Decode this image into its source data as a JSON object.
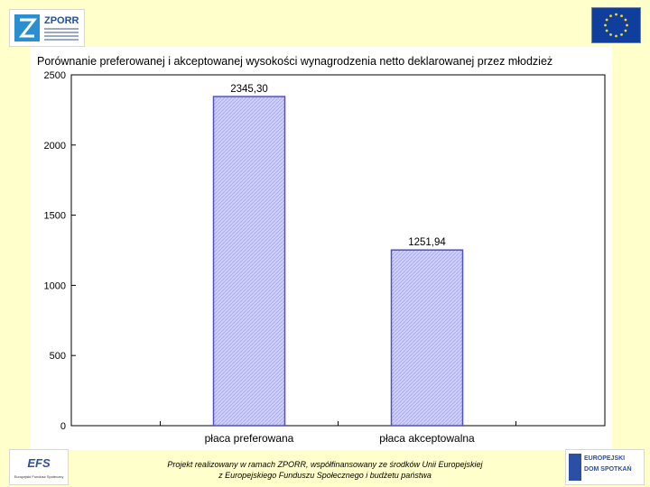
{
  "chart_data": {
    "type": "bar",
    "title": "Porównanie preferowanej i akceptowanej wysokości wynagrodzenia netto deklarowanej przez młodzież",
    "categories": [
      "płaca preferowana",
      "płaca akceptowalna"
    ],
    "values": [
      2345.3,
      1251.94
    ],
    "value_labels": [
      "2345,30",
      "1251,94"
    ],
    "ylim": [
      0,
      2500
    ],
    "yticks": [
      0,
      500,
      1000,
      1500,
      2000,
      2500
    ],
    "grid": false,
    "colors": {
      "bar_fill": "#c9c9f4",
      "bar_border": "#5050c8",
      "title": "#000000"
    }
  },
  "header": {
    "logo_left_text": "ZPORR",
    "logo_left_icon": "zporr-logo-icon",
    "logo_right_icon": "eu-flag-icon"
  },
  "footer": {
    "line1": "Projekt realizowany w ramach ZPORR, współfinansowany ze środków Unii Europejskiej",
    "line2": "z Europejskiego Funduszu Społecznego i budżetu państwa",
    "logo_left_text": "EFS",
    "logo_left_subtext": "Europejski Fundusz Społeczny",
    "logo_right_line1": "EUROPEJSKI",
    "logo_right_line2": "DOM SPOTKAŃ"
  }
}
